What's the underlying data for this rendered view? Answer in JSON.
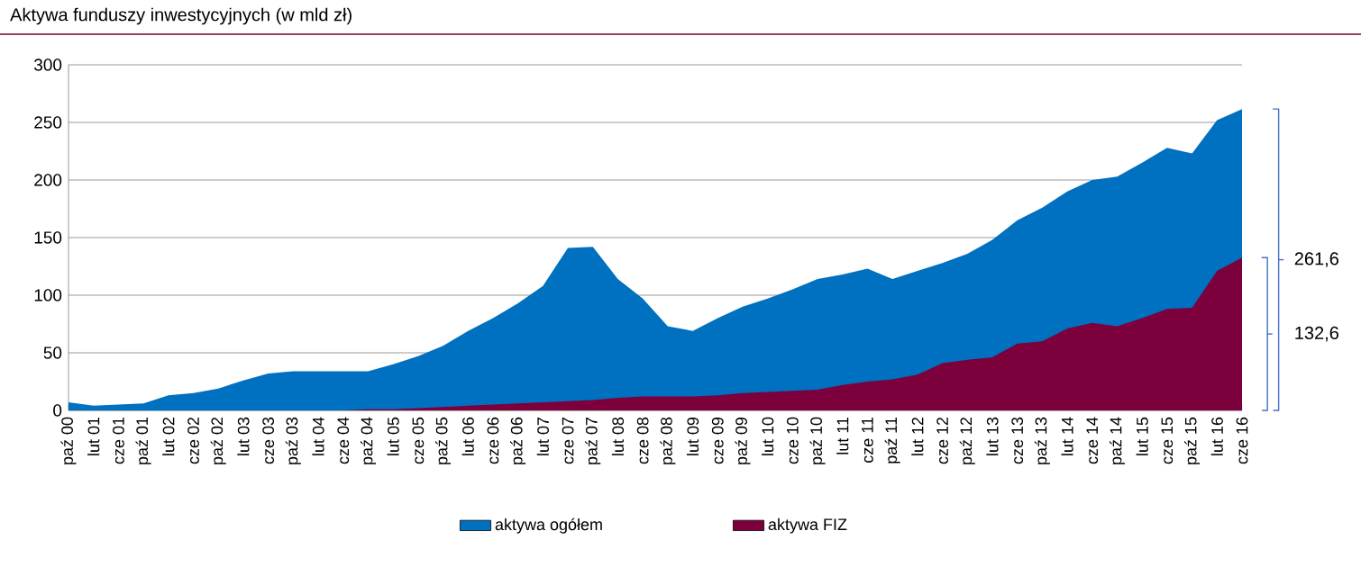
{
  "chart_data": {
    "type": "area",
    "title": "Aktywa funduszy inwestycyjnych (w mld zł)",
    "categories": [
      "paź 00",
      "lut 01",
      "cze 01",
      "paź 01",
      "lut 02",
      "cze 02",
      "paź 02",
      "lut 03",
      "cze 03",
      "paź 03",
      "lut 04",
      "cze 04",
      "paź 04",
      "lut 05",
      "cze 05",
      "paź 05",
      "lut 06",
      "cze 06",
      "paź 06",
      "lut 07",
      "cze 07",
      "paź 07",
      "lut 08",
      "cze 08",
      "paź 08",
      "lut 09",
      "cze 09",
      "paź 09",
      "lut 10",
      "cze 10",
      "paź 10",
      "lut 11",
      "cze 11",
      "paź 11",
      "lut 12",
      "cze 12",
      "paź 12",
      "lut 13",
      "cze 13",
      "paź 13",
      "lut 14",
      "cze 14",
      "paź 14",
      "lut 15",
      "cze 15",
      "paź 15",
      "lut 16",
      "cze 16"
    ],
    "series": [
      {
        "name": "aktywa ogółem",
        "color": "#0070c0",
        "values": [
          7,
          4,
          5,
          6,
          13,
          15,
          19,
          26,
          32,
          34,
          34,
          34,
          34,
          40,
          47,
          56,
          69,
          80,
          93,
          108,
          141,
          142,
          114,
          97,
          73,
          69,
          80,
          90,
          97,
          105,
          114,
          118,
          123,
          114,
          121,
          128,
          136,
          148,
          165,
          176,
          190,
          200,
          203,
          215,
          228,
          223,
          252,
          261.6
        ]
      },
      {
        "name": "aktywa FIZ",
        "color": "#7b003c",
        "values": [
          0,
          0,
          0,
          0,
          0,
          0,
          0,
          0,
          0,
          0,
          0,
          0,
          1,
          1,
          2,
          3,
          4,
          5,
          6,
          7,
          8,
          9,
          11,
          12,
          12,
          12,
          13,
          15,
          16,
          17,
          18,
          22,
          25,
          27,
          31,
          41,
          44,
          46,
          58,
          60,
          71,
          76,
          73,
          80,
          88,
          89,
          121,
          132.6
        ]
      }
    ],
    "ylim": [
      0,
      300
    ],
    "yticks": [
      0,
      50,
      100,
      150,
      200,
      250,
      300
    ],
    "grid": "y",
    "legend": "bottom",
    "annotations": [
      "261,6",
      "132,6"
    ]
  }
}
